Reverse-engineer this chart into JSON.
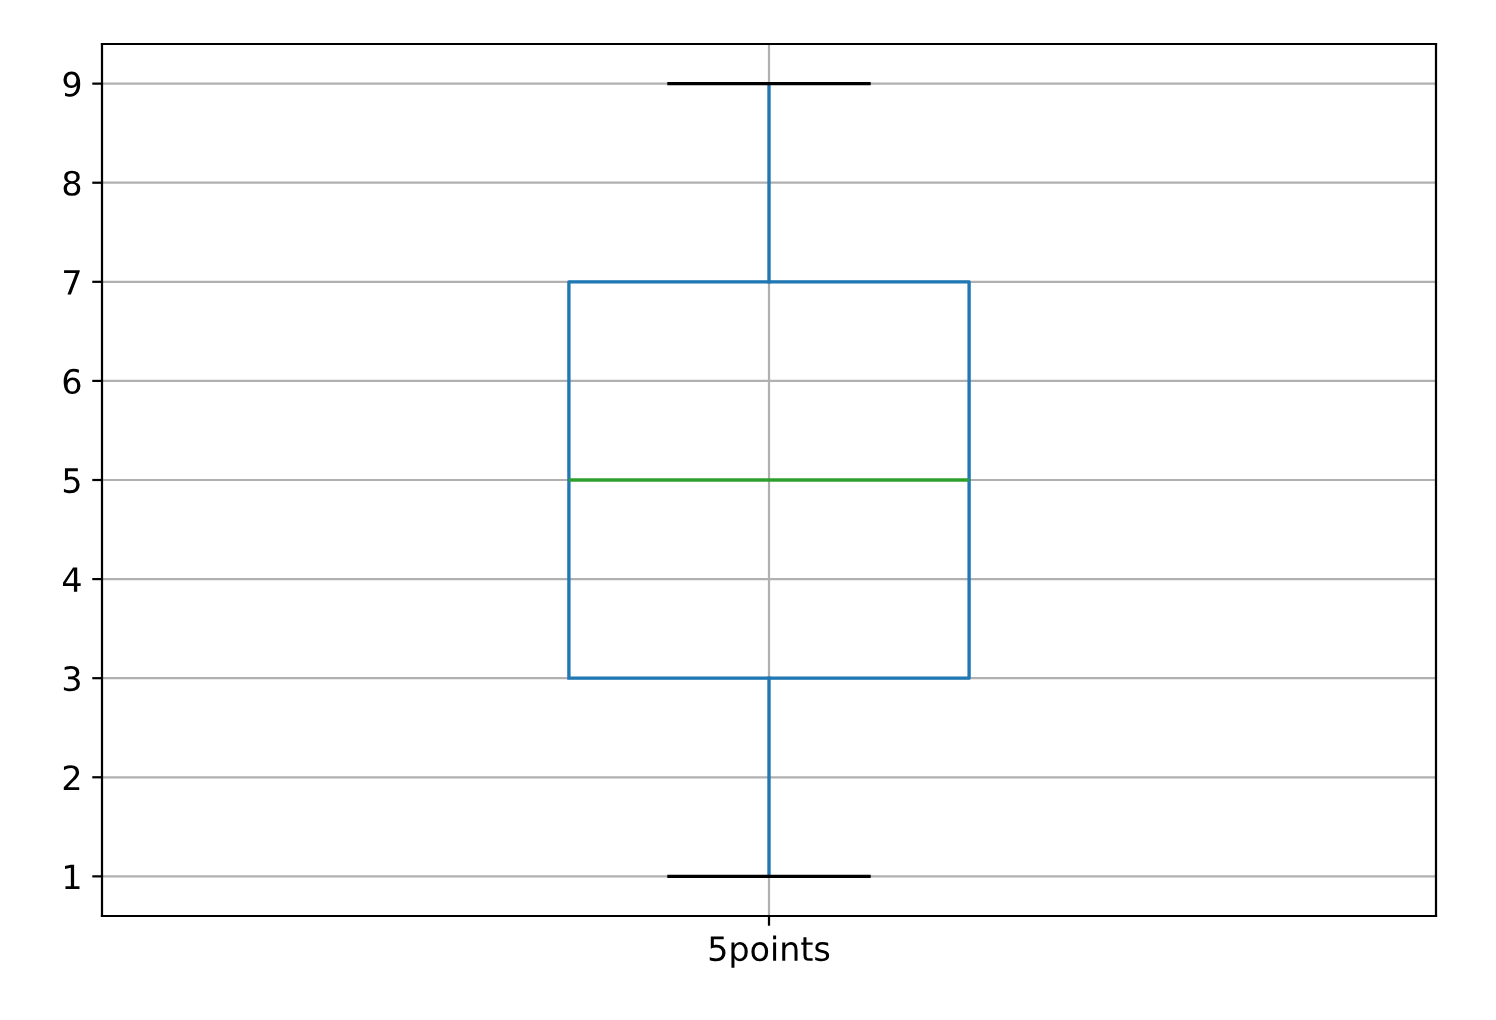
{
  "chart_data": {
    "type": "box",
    "categories": [
      "5points"
    ],
    "series": [
      {
        "color": "#1f77b4",
        "boxes": [
          {
            "low": 1,
            "q1": 3,
            "median": 5,
            "q3": 7,
            "high": 9
          }
        ]
      }
    ],
    "ylim": [
      0.6,
      9.4
    ],
    "yticks": [
      1,
      2,
      3,
      4,
      5,
      6,
      7,
      8,
      9
    ],
    "grid": true
  }
}
